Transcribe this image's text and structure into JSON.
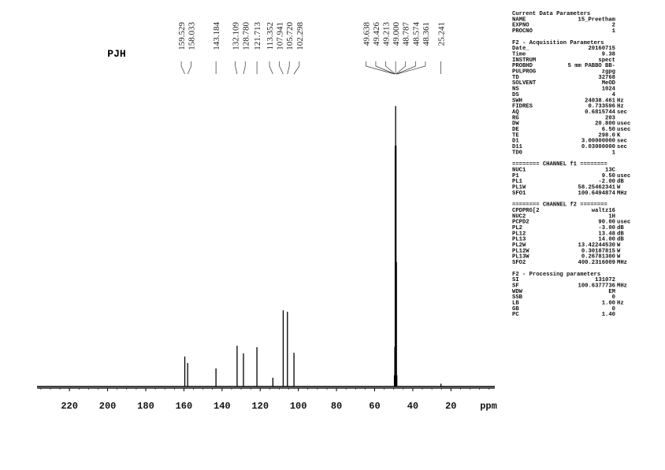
{
  "chart_data": {
    "type": "spectrum",
    "title": "PJH",
    "xlabel": "ppm",
    "xlim": [
      237,
      -3
    ],
    "xticks": [
      220,
      200,
      180,
      160,
      140,
      120,
      100,
      80,
      60,
      40,
      20
    ],
    "ylim": [
      0,
      100
    ],
    "color": "#000000",
    "peaks": {
      "x": [
        159.529,
        158.033,
        143.184,
        132.109,
        128.78,
        121.713,
        113.352,
        107.941,
        105.72,
        102.298,
        49.638,
        49.426,
        49.213,
        49.0,
        48.787,
        48.574,
        48.361,
        25.241
      ],
      "x_labels": [
        "159.529",
        "158.033",
        "143.184",
        "132.109",
        "128.780",
        "121.713",
        "113.352",
        "107.941",
        "105.720",
        "102.298",
        "49.638",
        "49.426",
        "49.213",
        "49.000",
        "48.787",
        "48.574",
        "48.361",
        "25.241"
      ],
      "values": [
        10.6,
        8.3,
        6.4,
        14.4,
        11.7,
        13.9,
        3.1,
        26.9,
        26.4,
        11.9,
        4,
        14,
        85,
        99,
        85,
        44,
        4,
        1
      ]
    }
  },
  "parameters": [
    {
      "heading": "Current Data Parameters",
      "rows": [
        [
          "NAME",
          "15_Preetham",
          ""
        ],
        [
          "EXPNO",
          "2",
          ""
        ],
        [
          "PROCNO",
          "1",
          ""
        ]
      ]
    },
    {
      "heading": "F2 - Acquisition Parameters",
      "rows": [
        [
          "Date_",
          "20160715",
          ""
        ],
        [
          "Time",
          "9.38",
          ""
        ],
        [
          "INSTRUM",
          "spect",
          ""
        ],
        [
          "PROBHD",
          "5 mm PABBO BB-",
          ""
        ],
        [
          "PULPROG",
          "zgpg",
          ""
        ],
        [
          "TD",
          "32768",
          ""
        ],
        [
          "SOLVENT",
          "MeOD",
          ""
        ],
        [
          "NS",
          "1024",
          ""
        ],
        [
          "DS",
          "4",
          ""
        ],
        [
          "SWH",
          "24038.461",
          "Hz"
        ],
        [
          "FIDRES",
          "0.733596",
          "Hz"
        ],
        [
          "AQ",
          "0.6815744",
          "sec"
        ],
        [
          "RG",
          "203",
          ""
        ],
        [
          "DW",
          "20.800",
          "usec"
        ],
        [
          "DE",
          "6.50",
          "usec"
        ],
        [
          "TE",
          "298.0",
          "K"
        ],
        [
          "D1",
          "3.00000000",
          "sec"
        ],
        [
          "D11",
          "0.03000000",
          "sec"
        ],
        [
          "TD0",
          "1",
          ""
        ]
      ]
    },
    {
      "heading": "======== CHANNEL f1 ========",
      "rows": [
        [
          "NUC1",
          "13C",
          ""
        ],
        [
          "P1",
          "9.50",
          "usec"
        ],
        [
          "PL1",
          "-2.00",
          "dB"
        ],
        [
          "PL1W",
          "58.25462341",
          "W"
        ],
        [
          "SFO1",
          "100.6494874",
          "MHz"
        ]
      ]
    },
    {
      "heading": "======== CHANNEL f2 ========",
      "rows": [
        [
          "CPDPRG[2",
          "waltz16",
          ""
        ],
        [
          "NUC2",
          "1H",
          ""
        ],
        [
          "PCPD2",
          "90.00",
          "usec"
        ],
        [
          "PL2",
          "-3.00",
          "dB"
        ],
        [
          "PL12",
          "13.48",
          "dB"
        ],
        [
          "PL13",
          "14.00",
          "dB"
        ],
        [
          "PL2W",
          "13.42244530",
          "W"
        ],
        [
          "PL12W",
          "0.30187815",
          "W"
        ],
        [
          "PL13W",
          "0.26781300",
          "W"
        ],
        [
          "SFO2",
          "400.2316009",
          "MHz"
        ]
      ]
    },
    {
      "heading": "F2 - Processing parameters",
      "rows": [
        [
          "SI",
          "131072",
          ""
        ],
        [
          "SF",
          "100.6377736",
          "MHz"
        ],
        [
          "WDW",
          "EM",
          ""
        ],
        [
          "SSB",
          "0",
          ""
        ],
        [
          "LB",
          "1.00",
          "Hz"
        ],
        [
          "GB",
          "0",
          ""
        ],
        [
          "PC",
          "1.40",
          ""
        ]
      ]
    }
  ]
}
